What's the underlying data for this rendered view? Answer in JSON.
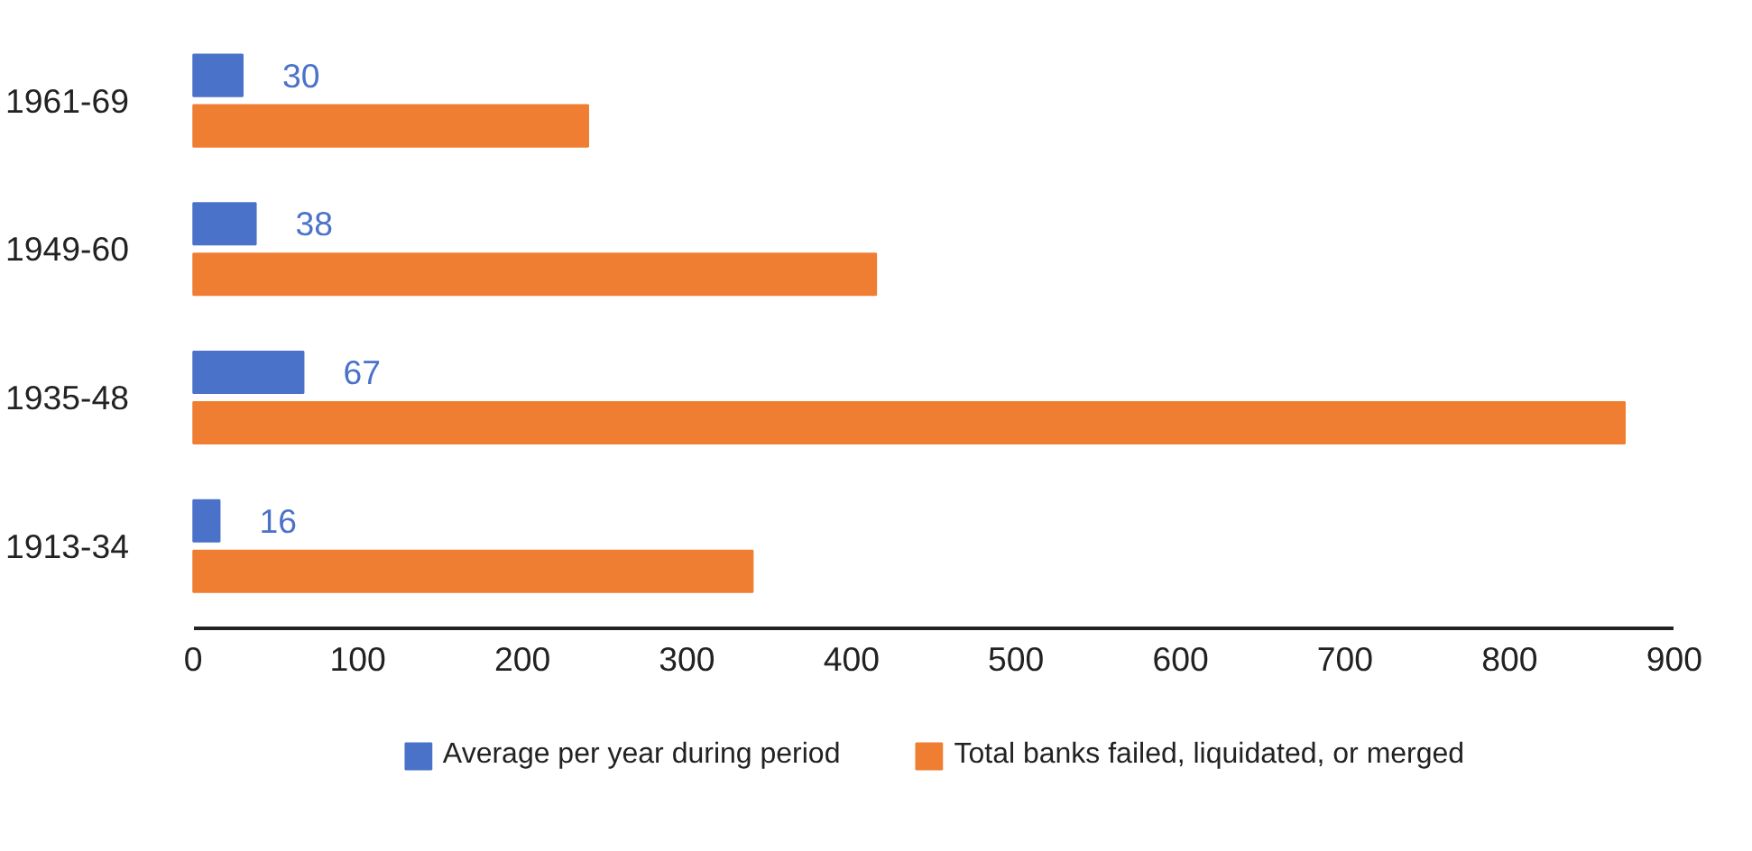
{
  "chart_data": {
    "type": "bar",
    "orientation": "horizontal",
    "categories": [
      "1961-69",
      "1949-60",
      "1935-48",
      "1913-34"
    ],
    "series": [
      {
        "name": "Average per year during period",
        "color": "#4a72c9",
        "values": [
          30,
          38,
          67,
          16
        ],
        "value_labels": [
          "30",
          "38",
          "67",
          "16"
        ]
      },
      {
        "name": "Total banks failed, liquidated, or merged",
        "color": "#ef7e33",
        "values": [
          240,
          415,
          870,
          340
        ]
      }
    ],
    "xlim": [
      0,
      900
    ],
    "xticks": [
      0,
      100,
      200,
      300,
      400,
      500,
      600,
      700,
      800,
      900
    ],
    "grid": false,
    "legend": "bottom"
  }
}
